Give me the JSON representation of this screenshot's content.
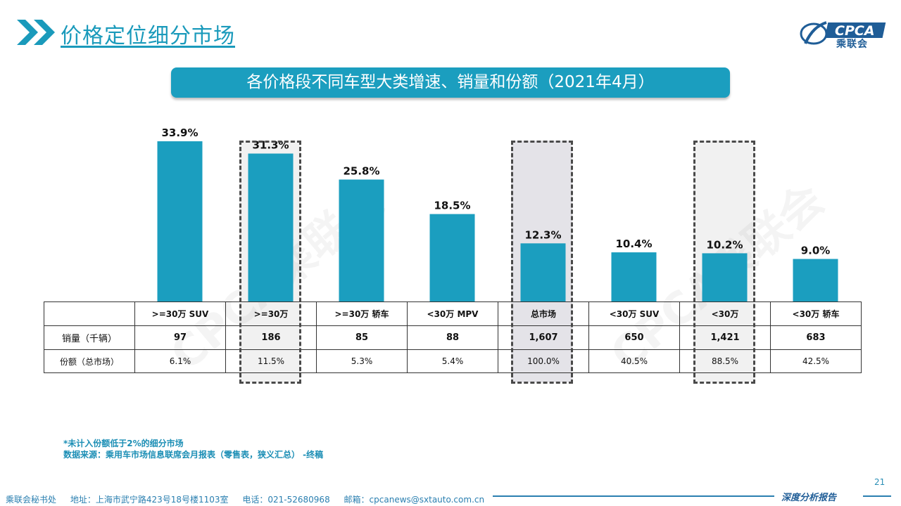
{
  "header": {
    "title": "价格定位细分市场",
    "logo_text": "CPCA",
    "logo_cn": "乘联会"
  },
  "banner": {
    "text": "各价格段不同车型大类增速、销量和份额（2021年4月）"
  },
  "chart_data": {
    "type": "bar",
    "categories": [
      ">=30万 SUV",
      ">=30万",
      ">=30万 轿车",
      "<30万 MPV",
      "总市场",
      "<30万 SUV",
      "<30万",
      "<30万 轿车"
    ],
    "values": [
      33.9,
      31.3,
      25.8,
      18.5,
      12.3,
      10.4,
      10.2,
      9.0
    ],
    "value_labels": [
      "33.9%",
      "31.3%",
      "25.8%",
      "18.5%",
      "12.3%",
      "10.4%",
      "10.2%",
      "9.0%"
    ],
    "ylim": [
      0,
      40
    ],
    "bar_color": "#1b9ebf",
    "grid": false,
    "title": "",
    "xlabel": "",
    "ylabel": ""
  },
  "table": {
    "header": [
      ">=30万 SUV",
      ">=30万",
      ">=30万 轿车",
      "<30万 MPV",
      "总市场",
      "<30万 SUV",
      "<30万",
      "<30万 轿车"
    ],
    "rows": [
      {
        "label": "销量（千辆）",
        "cells": [
          "97",
          "186",
          "85",
          "88",
          "1,607",
          "650",
          "1,421",
          "683"
        ]
      },
      {
        "label": "份额（总市场）",
        "cells": [
          "6.1%",
          "11.5%",
          "5.3%",
          "5.4%",
          "100.0%",
          "40.5%",
          "88.5%",
          "42.5%"
        ]
      }
    ]
  },
  "watermark": "CPCA乘联会",
  "notes": {
    "line1": "*未计入份额低于2%的细分市场",
    "line2": "数据来源：乘用车市场信息联席会月报表（零售表，狭义汇总）  -终稿"
  },
  "page_number": "21",
  "footer": {
    "office": "乘联会秘书处",
    "address": "地址：上海市武宁路423号18号楼1103室",
    "phone": "电话：021-52680968",
    "email": "邮箱：cpcanews@sxtauto.com.cn",
    "report": "深度分析报告"
  }
}
